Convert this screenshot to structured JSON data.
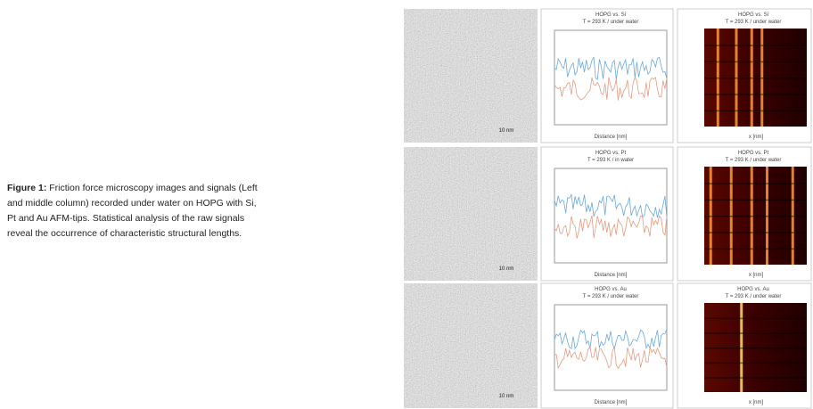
{
  "caption": {
    "label": "Figure 1:",
    "lines": [
      " Friction force microscopy images and signals (Left",
      "and middle column) recorded under water on HOPG with Si,",
      "Pt and Au AFM-tips. Statistical analysis of the raw signals",
      "reveal the occurrence of characteristic structural lengths."
    ]
  },
  "rows": [
    {
      "scale": "10 nm",
      "plot_title": "HOPG vs. Si",
      "plot_subtitle": "T = 293 K / under water",
      "plot_xlabel": "Distance [nm]",
      "map_title": "HOPG vs. Si",
      "map_subtitle": "T = 293 K / under water",
      "map_xlabel": "x [nm]"
    },
    {
      "scale": "10 nm",
      "plot_title": "HOPG vs. Pt",
      "plot_subtitle": "T = 293 K / in water",
      "plot_xlabel": "Distance [nm]",
      "map_title": "HOPG vs. Pt",
      "map_subtitle": "T = 293 K / under water",
      "map_xlabel": "x [nm]"
    },
    {
      "scale": "10 nm",
      "plot_title": "HOPG vs. Au",
      "plot_subtitle": "T = 293 K / under water",
      "plot_xlabel": "Distance [nm]",
      "map_title": "HOPG vs. Au",
      "map_subtitle": "T = 293 K / under water",
      "map_xlabel": "x [nm]"
    }
  ]
}
